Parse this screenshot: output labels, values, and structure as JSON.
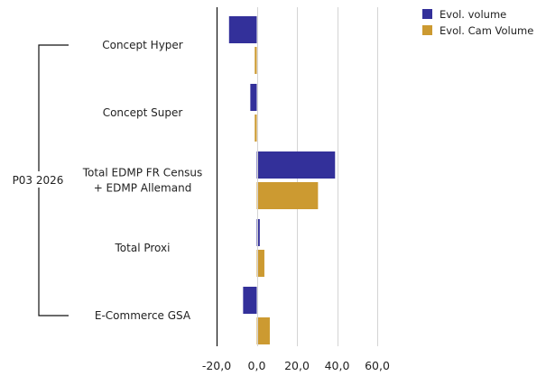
{
  "colors": {
    "series_volume": "#33309a",
    "series_cam_volume": "#cc9a31",
    "gridline": "#d4d4d4",
    "axis": "#111111",
    "text": "#222222"
  },
  "chart_data": {
    "type": "bar",
    "orientation": "horizontal",
    "title": "",
    "xlabel": "",
    "ylabel": "",
    "group_label": "P03 2026",
    "categories": [
      "Concept Hyper",
      "Concept Super",
      "Total EDMP FR Census + EDMP Allemand",
      "Total Proxi",
      "E-Commerce GSA"
    ],
    "category_label_lines": [
      [
        "Concept Hyper"
      ],
      [
        "Concept Super"
      ],
      [
        "Total EDMP FR Census",
        "+ EDMP Allemand"
      ],
      [
        "Total Proxi"
      ],
      [
        "E-Commerce GSA"
      ]
    ],
    "series": [
      {
        "name": "Evol. volume",
        "values": [
          -13.8,
          -3.2,
          39.0,
          1.5,
          -6.8
        ]
      },
      {
        "name": "Evol. Cam Volume",
        "values": [
          -1.0,
          -1.0,
          30.5,
          3.8,
          6.5
        ]
      }
    ],
    "xlim": [
      -20,
      60
    ],
    "x_ticks": [
      "-20,0",
      "0,0",
      "20,0",
      "40,0",
      "60,0"
    ],
    "x_tick_values": [
      -20,
      0,
      20,
      40,
      60
    ],
    "grid": true,
    "legend": "top-right"
  }
}
